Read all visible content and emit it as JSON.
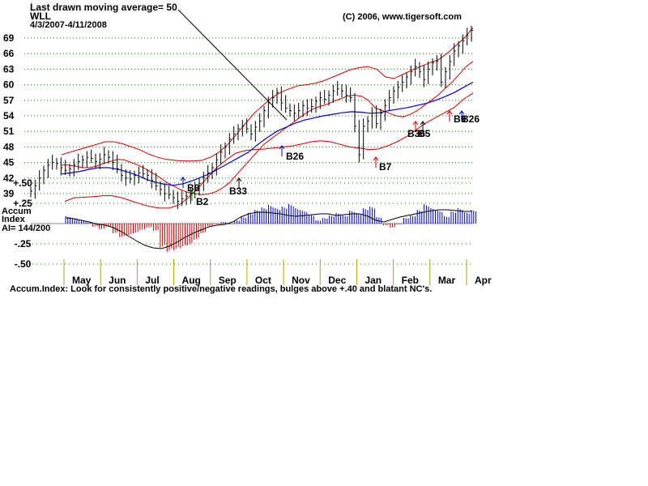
{
  "header": {
    "moving_average_note": "Last drawn moving average= 50",
    "ticker": "WLL",
    "date_range": "4/3/2007-4/11/2008",
    "copyright": "(C) 2006, www.tigersoft.com"
  },
  "indicator": {
    "name_line1": "Accum",
    "name_line2": "Index",
    "ai_value": "AI= 144/200",
    "footer_note": "Accum.Index: Look for consistently positive/negative readings, bulges above +.40 and blatant NC's."
  },
  "colors": {
    "price_bars": "#000000",
    "ma_short": "#dd0000",
    "ma_50": "#0000cc",
    "bands": "#cc0000",
    "accum_positive": "#0000cc",
    "accum_negative": "#cc0000",
    "signal_buy": "#0000cc",
    "signal_green": "#008800",
    "signal_red": "#cc0000",
    "grid": "#008800",
    "month_ticks": "#aaaa00"
  },
  "chart_data": [
    {
      "type": "line",
      "subtype": "ohlc",
      "title": "WLL",
      "y_ticks": [
        39,
        42,
        45,
        48,
        51,
        54,
        57,
        60,
        63,
        66,
        69
      ],
      "y_tick_labels": [
        "39",
        "42",
        "45",
        "48",
        "51",
        "54",
        "57",
        "60",
        "63",
        "66",
        "69"
      ],
      "ylim": [
        36,
        71
      ],
      "grid": true,
      "x_labels": [
        "May",
        "Jun",
        "Jul",
        "Aug",
        "Sep",
        "Oct",
        "Nov",
        "Dec",
        "Jan",
        "Feb",
        "Mar",
        "Apr"
      ],
      "series": [
        {
          "kind": "close",
          "values": [
            39.5,
            40.5,
            42,
            43.5,
            44.5,
            45,
            44.8,
            44,
            43.5,
            43.8,
            44.5,
            45.2,
            45.5,
            46,
            45.8,
            45.2,
            45.6,
            46.5,
            46,
            45,
            43.8,
            42.5,
            42,
            41.8,
            42.5,
            43,
            42.8,
            42.5,
            41.5,
            40.5,
            39.8,
            39,
            38.8,
            38.2,
            37.5,
            38,
            38.5,
            39,
            39.8,
            41,
            42,
            43,
            44,
            45.5,
            47,
            48,
            49.5,
            50.5,
            51.5,
            52,
            51.5,
            50.5,
            51.8,
            53,
            55,
            56.5,
            57.5,
            58.5,
            56.5,
            55.5,
            55,
            54.5,
            55,
            56,
            55.5,
            55.8,
            56.8,
            57.5,
            57.2,
            58,
            58.8,
            59.2,
            58.8,
            58,
            57.5,
            52,
            46.5,
            52,
            53,
            54.5,
            52.5,
            54.5,
            56,
            57.5,
            58.8,
            59.5,
            60.5,
            61.5,
            62.5,
            63.5,
            62.5,
            61,
            63,
            64.2,
            64.5,
            60.5,
            62.5,
            64.5,
            66.5,
            67.5,
            68.5,
            69.5,
            70.5
          ]
        },
        {
          "kind": "ma_short",
          "values": [
            44.5,
            44.5,
            44.3,
            44,
            44,
            44.3,
            44.8,
            45.2,
            45.6,
            45.5,
            45,
            44.5,
            43.8,
            43,
            42.2,
            41.2,
            40.5,
            39.8,
            39.3,
            39,
            38.8,
            38.9,
            39.3,
            40,
            41,
            42.5,
            44,
            45.5,
            47,
            48.5,
            49.5,
            50.5,
            51.5,
            52.5,
            53.5,
            54.5,
            55.3,
            55.8,
            56.2,
            56.8,
            57.3,
            57.8,
            58,
            57.8,
            57,
            55.5,
            55,
            54.5,
            54,
            53.8,
            54.3,
            55,
            56,
            57,
            58,
            59.3,
            60.5,
            62,
            63.5,
            64.5
          ]
        },
        {
          "kind": "ma_50",
          "values": [
            42.8,
            43,
            43.3,
            43.7,
            44,
            44,
            43.7,
            43.2,
            42.6,
            41.8,
            41.2,
            40.8,
            40.6,
            40.9,
            41.5,
            42.2,
            43,
            44,
            45,
            46,
            47,
            48.5,
            49.8,
            51,
            51.8,
            52.6,
            53.2,
            53.6,
            54,
            54.3,
            54.6,
            54.8,
            54.7,
            54.5,
            54.6,
            55,
            55.3,
            55.6,
            56,
            56.4,
            57,
            57.7,
            58.5,
            59.5,
            60.5
          ]
        },
        {
          "kind": "upper_band",
          "values": [
            46.5,
            47,
            47.5,
            48,
            48.5,
            49,
            49,
            48.6,
            48,
            47.4,
            46.6,
            46,
            45.6,
            45.4,
            45.3,
            45.3,
            45.4,
            46,
            47,
            48.5,
            50.5,
            52.5,
            54.5,
            56,
            57.5,
            58.5,
            59.2,
            59.8,
            60,
            60.3,
            60.8,
            61.5,
            62.2,
            62.9,
            63.3,
            63.5,
            63,
            61.5,
            61.2,
            62,
            62.8,
            63.5,
            64.2,
            64.8,
            66,
            67.5,
            69,
            71
          ]
        },
        {
          "kind": "lower_band",
          "values": [
            37.5,
            38.2,
            38.3,
            38.4,
            38.6,
            38.6,
            38.2,
            37.6,
            37,
            36.5,
            36.2,
            36.2,
            36.8,
            38.2,
            40,
            42,
            44,
            45.5,
            46.8,
            47.3,
            47.5,
            47.6,
            47.8,
            48,
            48.2,
            48.6,
            49,
            49.2,
            49,
            48.5,
            48,
            47.8,
            47.5,
            47.6,
            48.2,
            49,
            50,
            51.3,
            52.6,
            53.6,
            54.6,
            55.6,
            57.2,
            58.4
          ]
        }
      ],
      "signals": [
        {
          "label": "B8",
          "month": "Aug",
          "color": "blue"
        },
        {
          "label": "B2",
          "month": "Aug",
          "color": "green"
        },
        {
          "label": "B33",
          "month": "Sep",
          "color": "black"
        },
        {
          "label": "B26",
          "month": "Oct",
          "color": "blue"
        },
        {
          "label": "B7",
          "month": "Jan",
          "color": "red"
        },
        {
          "label": "B36",
          "month": "Feb",
          "color": "red"
        },
        {
          "label": "B5",
          "month": "Feb",
          "color": "black"
        },
        {
          "label": "B9",
          "month": "Mar",
          "color": "red"
        },
        {
          "label": "B26",
          "month": "Apr",
          "color": "blue"
        }
      ]
    },
    {
      "type": "bar",
      "title": "Accum Index",
      "y_ticks": [
        0.5,
        0.25,
        -0.25,
        -0.5
      ],
      "y_tick_labels": [
        "+.50",
        "+.25",
        "-.25",
        "-.50"
      ],
      "ylim": [
        -0.55,
        0.55
      ],
      "x_labels": [
        "May",
        "Jun",
        "Jul",
        "Aug",
        "Sep",
        "Oct",
        "Nov",
        "Dec",
        "Jan",
        "Feb",
        "Mar",
        "Apr"
      ],
      "values": [
        0.09,
        0.07,
        0.04,
        0.02,
        -0.04,
        -0.07,
        -0.04,
        -0.12,
        -0.17,
        -0.15,
        -0.12,
        -0.08,
        -0.05,
        -0.09,
        -0.3,
        -0.35,
        -0.33,
        -0.3,
        -0.27,
        -0.2,
        -0.12,
        -0.03,
        -0.01,
        0.02,
        -0.01,
        0.04,
        0.08,
        0.13,
        0.17,
        0.2,
        0.23,
        0.19,
        0.21,
        0.24,
        0.19,
        0.16,
        0.11,
        0.04,
        0.07,
        0.1,
        0.13,
        0.1,
        0.16,
        0.13,
        0.19,
        0.21,
        0.08,
        -0.02,
        -0.05,
        -0.01,
        0.07,
        0.1,
        0.17,
        0.24,
        0.19,
        0.16,
        0.09,
        0.15,
        0.19,
        0.14,
        0.17
      ],
      "ai_line": [
        0.07,
        0.06,
        0.04,
        0.02,
        -0.01,
        -0.02,
        -0.05,
        -0.1,
        -0.16,
        -0.22,
        -0.27,
        -0.3,
        -0.31,
        -0.28,
        -0.23,
        -0.17,
        -0.12,
        -0.08,
        -0.04,
        -0.02,
        -0.01,
        0.02,
        0.08,
        0.12,
        0.14,
        0.14,
        0.13,
        0.12,
        0.1,
        0.09,
        0.1,
        0.11,
        0.12,
        0.12,
        0.1,
        0.11,
        0.12,
        0.12,
        0.09,
        0.04,
        0.02,
        0.05,
        0.08,
        0.1,
        0.12,
        0.14,
        0.16,
        0.17,
        0.17,
        0.16,
        0.15,
        0.15
      ]
    }
  ]
}
